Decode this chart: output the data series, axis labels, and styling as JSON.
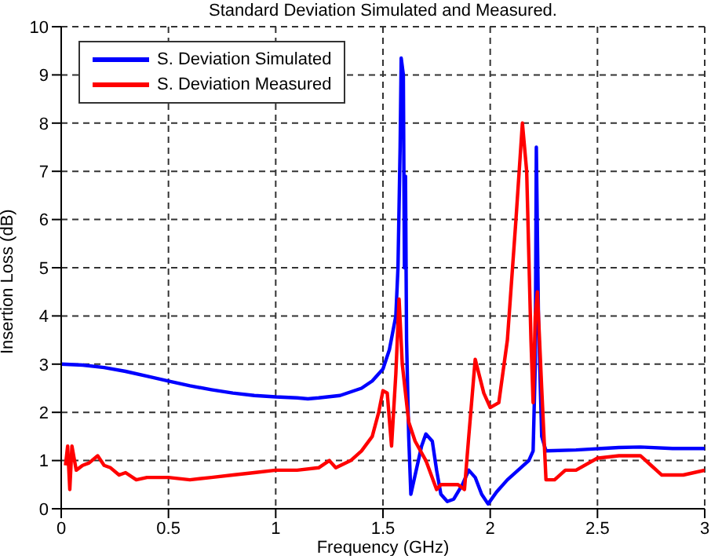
{
  "chart_data": {
    "type": "line",
    "title": "Standard Deviation Simulated and Measured.",
    "xlabel": "Frequency (GHz)",
    "ylabel": "Insertion Loss (dB)",
    "xlim": [
      0,
      3
    ],
    "xticks": [
      0,
      0.5,
      1,
      1.5,
      2,
      2.5,
      3
    ],
    "ylim": [
      0,
      10
    ],
    "yticks": [
      0,
      1,
      2,
      3,
      4,
      5,
      6,
      7,
      8,
      9,
      10
    ],
    "grid": true,
    "legend": "top left",
    "line_style": "solid",
    "marker": "none",
    "series": [
      {
        "name": "S. Deviation Simulated",
        "color": "#0000ff",
        "x": [
          0,
          0.1,
          0.2,
          0.3,
          0.4,
          0.5,
          0.6,
          0.7,
          0.8,
          0.9,
          1.0,
          1.1,
          1.15,
          1.2,
          1.3,
          1.4,
          1.45,
          1.5,
          1.53,
          1.56,
          1.57,
          1.58,
          1.585,
          1.595,
          1.6,
          1.605,
          1.61,
          1.62,
          1.63,
          1.65,
          1.68,
          1.7,
          1.73,
          1.75,
          1.77,
          1.8,
          1.83,
          1.87,
          1.9,
          1.93,
          1.96,
          1.99,
          2.03,
          2.08,
          2.13,
          2.18,
          2.2,
          2.21,
          2.215,
          2.225,
          2.24,
          2.26,
          2.4,
          2.6,
          2.7,
          2.85,
          3.0
        ],
        "values": [
          3.0,
          2.98,
          2.93,
          2.85,
          2.75,
          2.65,
          2.55,
          2.47,
          2.4,
          2.35,
          2.32,
          2.3,
          2.28,
          2.3,
          2.35,
          2.5,
          2.65,
          2.9,
          3.3,
          4.0,
          5.0,
          7.5,
          9.35,
          9.0,
          5.0,
          6.9,
          3.5,
          1.5,
          0.3,
          0.7,
          1.3,
          1.55,
          1.4,
          0.8,
          0.3,
          0.15,
          0.2,
          0.5,
          0.8,
          0.65,
          0.3,
          0.1,
          0.35,
          0.6,
          0.8,
          1.0,
          1.2,
          3.0,
          7.5,
          3.9,
          1.5,
          1.2,
          1.22,
          1.27,
          1.28,
          1.25,
          1.25
        ]
      },
      {
        "name": "S. Deviation Measured",
        "color": "#ff0000",
        "x": [
          0.02,
          0.03,
          0.04,
          0.05,
          0.07,
          0.1,
          0.13,
          0.17,
          0.2,
          0.23,
          0.27,
          0.3,
          0.35,
          0.4,
          0.5,
          0.6,
          0.7,
          0.8,
          0.9,
          1.0,
          1.1,
          1.2,
          1.25,
          1.28,
          1.35,
          1.4,
          1.45,
          1.48,
          1.5,
          1.52,
          1.54,
          1.56,
          1.575,
          1.59,
          1.62,
          1.65,
          1.7,
          1.75,
          1.77,
          1.85,
          1.88,
          1.9,
          1.93,
          1.97,
          2.0,
          2.04,
          2.08,
          2.12,
          2.15,
          2.17,
          2.19,
          2.2,
          2.21,
          2.22,
          2.24,
          2.26,
          2.3,
          2.35,
          2.4,
          2.5,
          2.6,
          2.7,
          2.75,
          2.8,
          2.9,
          3.0
        ],
        "values": [
          0.9,
          1.3,
          0.4,
          1.3,
          0.8,
          0.9,
          0.95,
          1.1,
          0.9,
          0.85,
          0.7,
          0.75,
          0.6,
          0.65,
          0.65,
          0.6,
          0.65,
          0.7,
          0.75,
          0.8,
          0.8,
          0.85,
          1.0,
          0.85,
          1.0,
          1.2,
          1.5,
          2.0,
          2.45,
          2.4,
          1.3,
          2.8,
          4.35,
          3.0,
          1.8,
          1.4,
          1.0,
          0.4,
          0.5,
          0.5,
          0.4,
          1.5,
          3.1,
          2.4,
          2.1,
          2.2,
          3.5,
          6.0,
          8.0,
          7.0,
          3.5,
          2.2,
          4.0,
          4.5,
          2.5,
          0.6,
          0.6,
          0.8,
          0.8,
          1.05,
          1.1,
          1.1,
          0.9,
          0.7,
          0.7,
          0.8
        ]
      }
    ]
  }
}
